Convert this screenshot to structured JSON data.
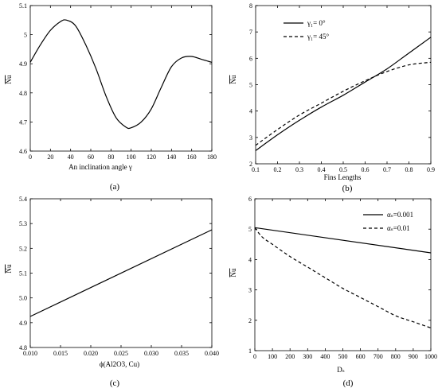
{
  "chart_data": [
    {
      "panel": "(a)",
      "type": "line",
      "xlabel": "An inclination angle γ",
      "ylabel": "Nu",
      "xlim": [
        0,
        180
      ],
      "ylim": [
        4.6,
        5.1
      ],
      "xticks": [
        0,
        20,
        40,
        60,
        80,
        100,
        120,
        140,
        160,
        180
      ],
      "yticks": [
        4.6,
        4.7,
        4.8,
        4.9,
        5.0,
        5.1
      ],
      "series": [
        {
          "style": "solid",
          "x": [
            0,
            10,
            20,
            30,
            36,
            45,
            55,
            65,
            75,
            85,
            95,
            100,
            110,
            120,
            130,
            140,
            150,
            160,
            170,
            180
          ],
          "y": [
            4.905,
            4.965,
            5.015,
            5.045,
            5.05,
            5.03,
            4.965,
            4.885,
            4.79,
            4.715,
            4.682,
            4.68,
            4.7,
            4.745,
            4.82,
            4.89,
            4.92,
            4.925,
            4.915,
            4.905
          ]
        }
      ]
    },
    {
      "panel": "(b)",
      "type": "line",
      "xlabel": "Fins Lengths",
      "ylabel": "Nu",
      "xlim": [
        0.1,
        0.9
      ],
      "ylim": [
        2,
        8
      ],
      "xticks": [
        0.1,
        0.2,
        0.3,
        0.4,
        0.5,
        0.6,
        0.7,
        0.8,
        0.9
      ],
      "yticks": [
        2,
        3,
        4,
        5,
        6,
        7,
        8
      ],
      "legend_position": "top-left",
      "series": [
        {
          "name": "γ₁= 0°",
          "style": "solid",
          "x": [
            0.1,
            0.2,
            0.3,
            0.4,
            0.5,
            0.6,
            0.7,
            0.8,
            0.9
          ],
          "y": [
            2.5,
            3.1,
            3.65,
            4.15,
            4.6,
            5.1,
            5.6,
            6.2,
            6.8
          ]
        },
        {
          "name": "γ₁= 45°",
          "style": "dashed",
          "x": [
            0.1,
            0.2,
            0.3,
            0.4,
            0.5,
            0.6,
            0.7,
            0.8,
            0.9
          ],
          "y": [
            2.7,
            3.3,
            3.85,
            4.3,
            4.75,
            5.15,
            5.5,
            5.75,
            5.85
          ]
        }
      ]
    },
    {
      "panel": "(c)",
      "type": "line",
      "xlabel": "ϕ(Al2O3, Cu)",
      "ylabel": "Nu",
      "xlim": [
        0.01,
        0.04
      ],
      "ylim": [
        4.8,
        5.4
      ],
      "xticks": [
        "0.010",
        "0.015",
        "0.020",
        "0.025",
        "0.030",
        "0.035",
        "0.040"
      ],
      "yticks": [
        "4.8",
        "4.9",
        "5.0",
        "5.1",
        "5.2",
        "5.3",
        "5.4"
      ],
      "series": [
        {
          "style": "solid",
          "x": [
            0.01,
            0.04
          ],
          "y": [
            4.925,
            5.275
          ]
        }
      ]
    },
    {
      "panel": "(d)",
      "type": "line",
      "xlabel": "Dₛ",
      "ylabel": "Nu",
      "xlim": [
        0,
        1000
      ],
      "ylim": [
        1,
        6
      ],
      "xticks": [
        0,
        100,
        200,
        300,
        400,
        500,
        600,
        700,
        800,
        900,
        1000
      ],
      "yticks": [
        1,
        2,
        3,
        4,
        5,
        6
      ],
      "legend_position": "top-right",
      "series": [
        {
          "name": "αₛ=0.001",
          "style": "solid",
          "x": [
            0,
            1000
          ],
          "y": [
            5.05,
            4.22
          ]
        },
        {
          "name": "αₛ=0.01",
          "style": "dashed",
          "x": [
            0,
            25,
            50,
            100,
            200,
            300,
            400,
            500,
            600,
            700,
            800,
            900,
            1000
          ],
          "y": [
            5.05,
            4.85,
            4.7,
            4.5,
            4.1,
            3.75,
            3.4,
            3.05,
            2.75,
            2.45,
            2.15,
            1.95,
            1.75
          ]
        }
      ]
    }
  ]
}
